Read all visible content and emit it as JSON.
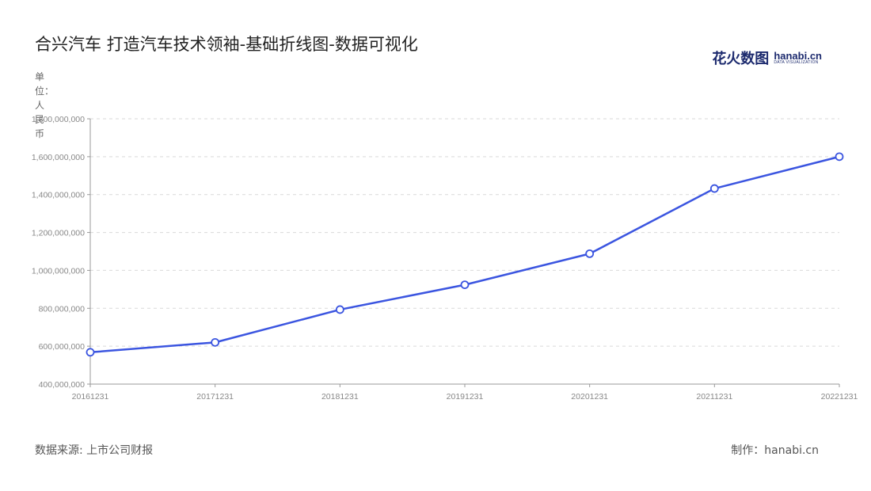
{
  "header": {
    "title": "合兴汽车 打造汽车技术领袖-基础折线图-数据可视化"
  },
  "brand": {
    "cn": "花火数图",
    "en": "hanabi.cn",
    "sub": "DATA VISUALIZATION"
  },
  "footer": {
    "source": "数据来源: 上市公司财报",
    "credit": "制作：hanabi.cn"
  },
  "colors": {
    "line": "#3b55e0",
    "grid": "#d9d9d9",
    "axis": "#999999"
  },
  "chart_data": {
    "type": "line",
    "title": "合兴汽车 打造汽车技术领袖-基础折线图-数据可视化",
    "ylabel": "单位：人民币",
    "xlabel": "",
    "categories": [
      "20161231",
      "20171231",
      "20181231",
      "20191231",
      "20201231",
      "20211231",
      "20221231"
    ],
    "series": [
      {
        "values": [
          568000000,
          620000000,
          793000000,
          924000000,
          1088000000,
          1432000000,
          1600000000
        ]
      }
    ],
    "ylim": [
      400000000,
      1800000000
    ],
    "yticks": [
      400000000,
      600000000,
      800000000,
      1000000000,
      1200000000,
      1400000000,
      1600000000,
      1800000000
    ],
    "ytick_labels": [
      "400,000,000",
      "600,000,000",
      "800,000,000",
      "1,000,000,000",
      "1,200,000,000",
      "1,400,000,000",
      "1,600,000,000",
      "1,800,000,000"
    ],
    "grid": true,
    "legend": "none"
  }
}
